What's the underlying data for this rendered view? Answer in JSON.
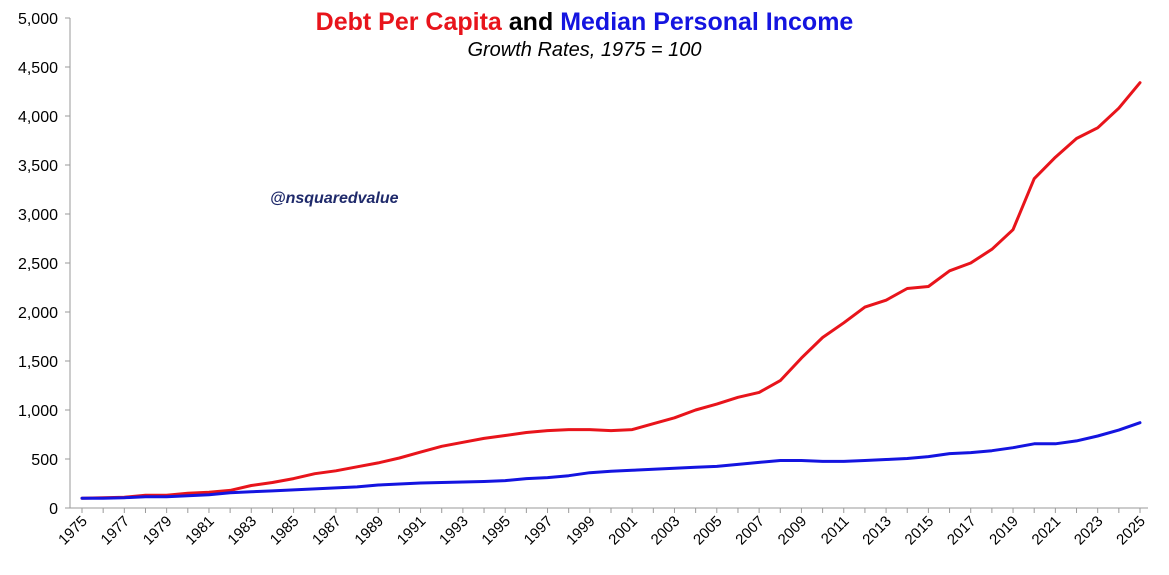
{
  "chart_data": {
    "type": "line",
    "title": {
      "part1": "Debt Per Capita",
      "part1_color": "#e8141b",
      "connector": "and",
      "part2": "Median Personal Income",
      "part2_color": "#1414e0"
    },
    "subtitle": "Growth Rates, 1975 = 100",
    "annotation": "@nsquaredvalue",
    "xlabel": "",
    "ylabel": "",
    "xlim": [
      1975,
      2025
    ],
    "ylim": [
      0,
      5000
    ],
    "y_ticks": [
      0,
      500,
      1000,
      1500,
      2000,
      2500,
      3000,
      3500,
      4000,
      4500,
      5000
    ],
    "y_tick_labels": [
      "0",
      "500",
      "1,000",
      "1,500",
      "2,000",
      "2,500",
      "3,000",
      "3,500",
      "4,000",
      "4,500",
      "5,000"
    ],
    "x_tick_labels": [
      "1975",
      "1977",
      "1979",
      "1981",
      "1983",
      "1985",
      "1987",
      "1989",
      "1991",
      "1993",
      "1995",
      "1997",
      "1999",
      "2001",
      "2003",
      "2005",
      "2007",
      "2009",
      "2011",
      "2013",
      "2015",
      "2017",
      "2019",
      "2021",
      "2023",
      "2025"
    ],
    "grid": false,
    "legend": "none",
    "x": [
      1975,
      1976,
      1977,
      1978,
      1979,
      1980,
      1981,
      1982,
      1983,
      1984,
      1985,
      1986,
      1987,
      1988,
      1989,
      1990,
      1991,
      1992,
      1993,
      1994,
      1995,
      1996,
      1997,
      1998,
      1999,
      2000,
      2001,
      2002,
      2003,
      2004,
      2005,
      2006,
      2007,
      2008,
      2009,
      2010,
      2011,
      2012,
      2013,
      2014,
      2015,
      2016,
      2017,
      2018,
      2019,
      2020,
      2021,
      2022,
      2023,
      2024,
      2025
    ],
    "series": [
      {
        "color": "#e8141b",
        "values": [
          100,
          105,
          110,
          130,
          130,
          150,
          160,
          180,
          230,
          260,
          300,
          350,
          380,
          420,
          460,
          510,
          570,
          630,
          670,
          710,
          740,
          770,
          790,
          800,
          800,
          790,
          800,
          860,
          920,
          1000,
          1060,
          1130,
          1180,
          1300,
          1530,
          1740,
          1890,
          2050,
          2120,
          2240,
          2260,
          2420,
          2500,
          2640,
          2840,
          3360,
          3580,
          3770,
          3880,
          4080,
          4340
        ]
      },
      {
        "color": "#1414e0",
        "values": [
          100,
          100,
          105,
          115,
          115,
          125,
          135,
          155,
          165,
          175,
          185,
          195,
          205,
          215,
          235,
          245,
          255,
          260,
          265,
          270,
          280,
          300,
          310,
          330,
          360,
          375,
          385,
          395,
          405,
          415,
          425,
          445,
          465,
          485,
          485,
          475,
          475,
          485,
          495,
          505,
          525,
          555,
          565,
          585,
          615,
          655,
          655,
          685,
          735,
          795,
          870
        ]
      }
    ]
  }
}
